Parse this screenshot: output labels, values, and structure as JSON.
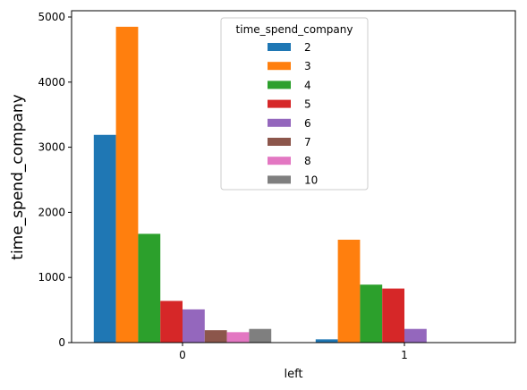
{
  "chart_data": {
    "type": "bar",
    "title": "",
    "xlabel": "left",
    "ylabel": "time_spend_company",
    "categories": [
      "0",
      "1"
    ],
    "ylim": [
      0,
      5000
    ],
    "yticks": [
      "0",
      "1000",
      "2000",
      "3000",
      "4000",
      "5000"
    ],
    "grid": false,
    "legend": {
      "title": "time_spend_company",
      "placement": "upper center"
    },
    "series": [
      {
        "name": "2",
        "color": "#1f77b4",
        "values": [
          3190,
          50
        ]
      },
      {
        "name": "3",
        "color": "#ff7f0e",
        "values": [
          4850,
          1580
        ]
      },
      {
        "name": "4",
        "color": "#2ca02c",
        "values": [
          1670,
          890
        ]
      },
      {
        "name": "5",
        "color": "#d62728",
        "values": [
          640,
          830
        ]
      },
      {
        "name": "6",
        "color": "#9467bd",
        "values": [
          510,
          210
        ]
      },
      {
        "name": "7",
        "color": "#8c564b",
        "values": [
          190,
          0
        ]
      },
      {
        "name": "8",
        "color": "#e377c2",
        "values": [
          160,
          0
        ]
      },
      {
        "name": "10",
        "color": "#7f7f7f",
        "values": [
          210,
          0
        ]
      }
    ]
  }
}
